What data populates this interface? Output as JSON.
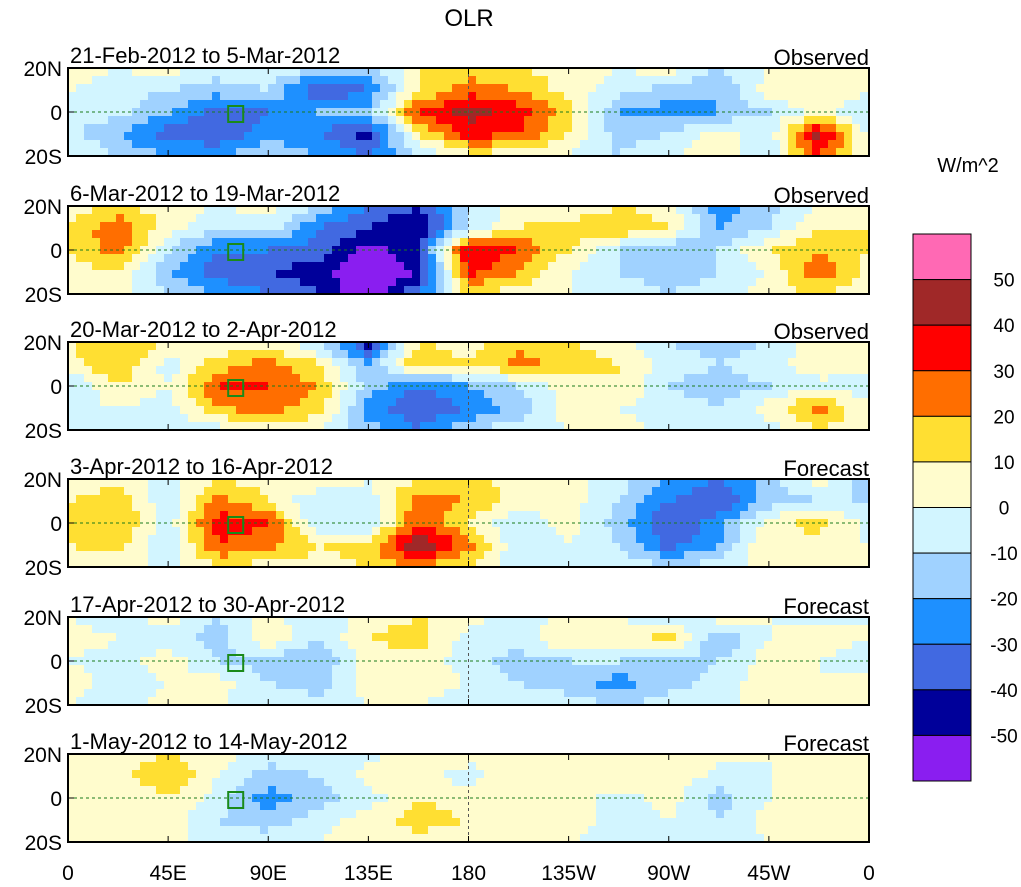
{
  "chart_data": {
    "type": "heatmap",
    "title": "OLR",
    "units": "W/m^2",
    "x_ticks": [
      "0",
      "45E",
      "90E",
      "135E",
      "180",
      "135W",
      "90W",
      "45W",
      "0"
    ],
    "y_ticks": [
      "20N",
      "0",
      "20S"
    ],
    "grid_lats": [
      20,
      10,
      0,
      -10,
      -20
    ],
    "grid_lons": [
      0,
      22.5,
      45,
      67.5,
      90,
      112.5,
      135,
      157.5,
      180,
      202.5,
      225,
      247.5,
      270,
      292.5,
      315,
      337.5,
      360
    ],
    "colorbar": {
      "labels": [
        "50",
        "40",
        "30",
        "20",
        "10",
        "0",
        "-10",
        "-20",
        "-30",
        "-40",
        "-50"
      ],
      "levels": [
        -50,
        -40,
        -30,
        -20,
        -10,
        0,
        10,
        20,
        30,
        40,
        50
      ],
      "colors": [
        "#8a1ef0",
        "#00009a",
        "#4169e1",
        "#1e90ff",
        "#a0d2ff",
        "#d2f5ff",
        "#fffccd",
        "#ffdf32",
        "#ff6e00",
        "#ff0000",
        "#a02828",
        "#ff69b4"
      ]
    },
    "panels": [
      {
        "period": "21-Feb-2012 to 5-Mar-2012",
        "status": "Observed",
        "values": [
          [
            5,
            0,
            5,
            -5,
            0,
            -10,
            -15,
            10,
            15,
            10,
            5,
            0,
            5,
            -10,
            0,
            5,
            0
          ],
          [
            0,
            -5,
            -10,
            -15,
            -10,
            -40,
            -30,
            10,
            25,
            20,
            5,
            -5,
            -15,
            -20,
            5,
            10,
            0
          ],
          [
            -10,
            -5,
            -20,
            -35,
            -30,
            -20,
            -15,
            30,
            45,
            35,
            15,
            -20,
            -25,
            -20,
            -10,
            5,
            -10
          ],
          [
            -5,
            -20,
            -35,
            -40,
            -25,
            -30,
            -45,
            10,
            35,
            30,
            10,
            -15,
            -10,
            5,
            -5,
            45,
            -5
          ],
          [
            0,
            -10,
            -20,
            -20,
            -10,
            -20,
            -30,
            -10,
            5,
            5,
            0,
            -10,
            0,
            5,
            -10,
            30,
            0
          ]
        ]
      },
      {
        "period": "6-Mar-2012 to 19-Mar-2012",
        "status": "Observed",
        "values": [
          [
            5,
            10,
            5,
            0,
            5,
            -10,
            -30,
            -40,
            -10,
            5,
            0,
            10,
            5,
            -25,
            -15,
            0,
            5
          ],
          [
            10,
            30,
            5,
            -10,
            -5,
            -30,
            -40,
            -50,
            -10,
            10,
            15,
            20,
            10,
            -20,
            -10,
            10,
            10
          ],
          [
            10,
            25,
            -10,
            -30,
            -30,
            -35,
            -55,
            -40,
            40,
            30,
            10,
            -10,
            -20,
            -10,
            10,
            20,
            10
          ],
          [
            5,
            10,
            -20,
            -35,
            -40,
            -45,
            -60,
            -50,
            35,
            20,
            0,
            -10,
            -15,
            -10,
            0,
            30,
            5
          ],
          [
            0,
            5,
            -10,
            -20,
            -30,
            -40,
            -60,
            -30,
            10,
            5,
            0,
            -5,
            -10,
            -5,
            5,
            10,
            0
          ]
        ]
      },
      {
        "period": "20-Mar-2012 to 2-Apr-2012",
        "status": "Observed",
        "values": [
          [
            10,
            20,
            10,
            0,
            5,
            -10,
            -45,
            10,
            5,
            15,
            10,
            5,
            -10,
            -15,
            -10,
            5,
            10
          ],
          [
            5,
            20,
            -5,
            15,
            25,
            10,
            -20,
            20,
            10,
            25,
            15,
            10,
            -5,
            -10,
            -5,
            10,
            5
          ],
          [
            -10,
            10,
            0,
            30,
            30,
            20,
            -15,
            -30,
            -20,
            -10,
            5,
            10,
            -10,
            -15,
            -10,
            -5,
            -5
          ],
          [
            -5,
            0,
            -5,
            20,
            25,
            15,
            -25,
            -40,
            -30,
            -15,
            5,
            0,
            -5,
            -10,
            5,
            25,
            0
          ],
          [
            0,
            -5,
            -10,
            -5,
            5,
            0,
            -15,
            -30,
            -10,
            -5,
            0,
            5,
            -5,
            0,
            -5,
            10,
            0
          ]
        ]
      },
      {
        "period": "3-Apr-2012 to 16-Apr-2012",
        "status": "Forecast",
        "values": [
          [
            0,
            5,
            -5,
            10,
            5,
            10,
            0,
            10,
            15,
            5,
            5,
            -5,
            -20,
            -30,
            -15,
            5,
            -20
          ],
          [
            10,
            20,
            -10,
            25,
            10,
            -10,
            -5,
            25,
            20,
            5,
            5,
            -10,
            -30,
            -40,
            -15,
            -10,
            -10
          ],
          [
            15,
            20,
            -5,
            35,
            30,
            -10,
            -10,
            30,
            10,
            -10,
            5,
            -15,
            -40,
            -25,
            5,
            15,
            -5
          ],
          [
            10,
            15,
            -10,
            30,
            25,
            10,
            15,
            50,
            25,
            -10,
            0,
            -10,
            -35,
            -20,
            10,
            5,
            0
          ],
          [
            0,
            5,
            -5,
            10,
            5,
            5,
            10,
            20,
            10,
            -5,
            -5,
            0,
            -10,
            -5,
            5,
            5,
            0
          ]
        ]
      },
      {
        "period": "17-Apr-2012 to 30-Apr-2012",
        "status": "Forecast",
        "values": [
          [
            0,
            -5,
            5,
            -10,
            5,
            -10,
            5,
            10,
            5,
            -10,
            5,
            0,
            -10,
            5,
            0,
            -5,
            0
          ],
          [
            5,
            0,
            -5,
            -15,
            10,
            -10,
            10,
            15,
            -5,
            -5,
            10,
            5,
            15,
            -20,
            0,
            5,
            0
          ],
          [
            0,
            -5,
            5,
            -10,
            -15,
            -20,
            5,
            5,
            -5,
            -15,
            -10,
            -10,
            -15,
            -10,
            5,
            0,
            -5
          ],
          [
            5,
            -5,
            0,
            5,
            -10,
            -15,
            5,
            5,
            0,
            -10,
            -15,
            -25,
            -15,
            -5,
            5,
            0,
            5
          ],
          [
            0,
            -5,
            5,
            0,
            -5,
            -5,
            0,
            0,
            -5,
            -5,
            -5,
            -10,
            -5,
            0,
            0,
            5,
            0
          ]
        ]
      },
      {
        "period": "1-May-2012 to 14-May-2012",
        "status": "Forecast",
        "values": [
          [
            0,
            5,
            10,
            5,
            -5,
            0,
            -5,
            10,
            5,
            0,
            5,
            0,
            10,
            5,
            0,
            5,
            0
          ],
          [
            0,
            5,
            20,
            0,
            -15,
            -10,
            5,
            5,
            -5,
            10,
            5,
            10,
            10,
            -5,
            0,
            5,
            5
          ],
          [
            5,
            0,
            10,
            -5,
            -25,
            -15,
            -5,
            10,
            5,
            5,
            5,
            -5,
            5,
            -15,
            0,
            5,
            0
          ],
          [
            5,
            0,
            5,
            -10,
            -15,
            -5,
            5,
            15,
            10,
            5,
            5,
            -5,
            0,
            -10,
            5,
            10,
            5
          ],
          [
            0,
            0,
            5,
            -5,
            -5,
            0,
            5,
            5,
            5,
            0,
            0,
            -5,
            0,
            -5,
            0,
            5,
            0
          ]
        ]
      }
    ]
  }
}
